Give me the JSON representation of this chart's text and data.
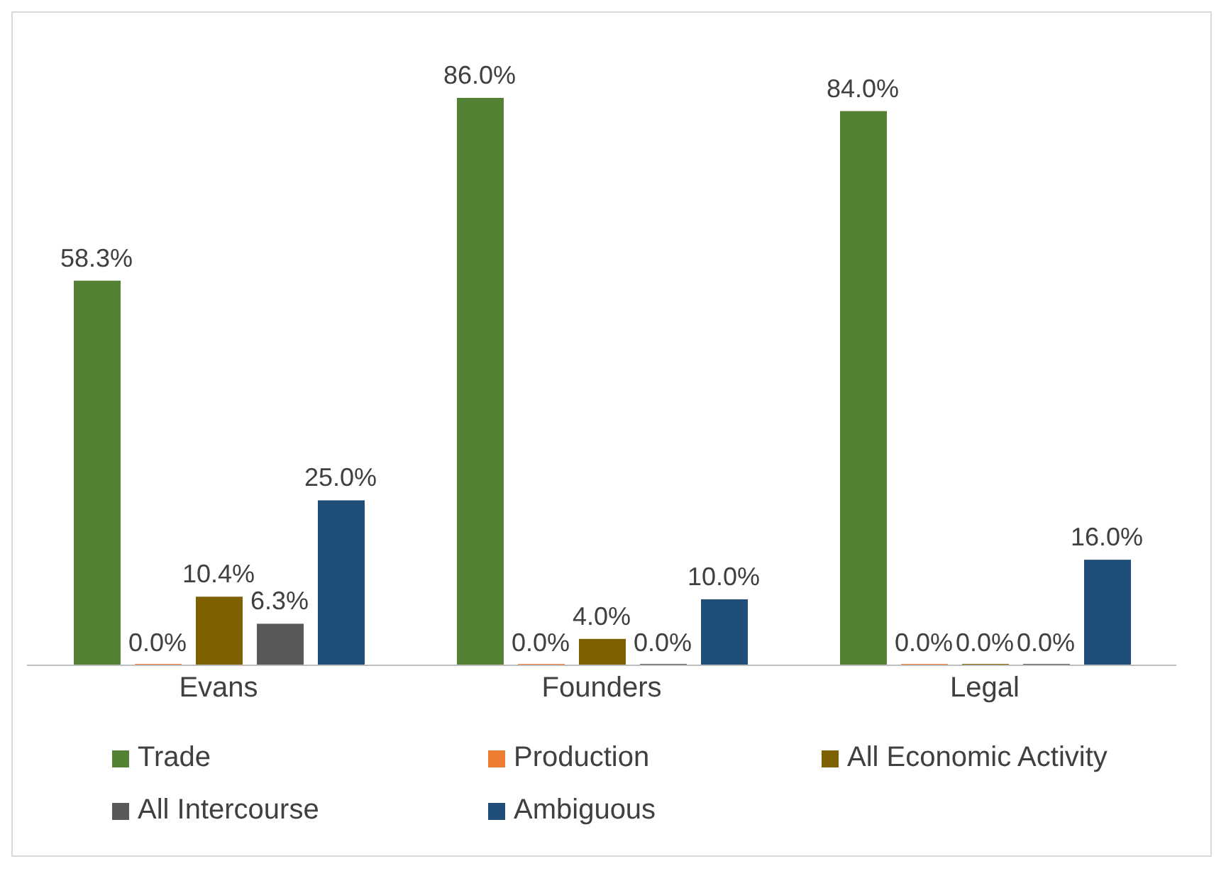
{
  "chart_data": {
    "type": "bar",
    "categories": [
      "Evans",
      "Founders",
      "Legal"
    ],
    "series": [
      {
        "name": "Trade",
        "color": "#548235",
        "values": [
          58.3,
          86.0,
          84.0
        ],
        "value_labels": [
          "58.3%",
          "86.0%",
          "84.0%"
        ]
      },
      {
        "name": "Production",
        "color": "#ed7d31",
        "values": [
          0,
          0,
          0
        ],
        "value_labels": [
          "0.0%",
          "0.0%",
          "0.0%"
        ]
      },
      {
        "name": "All Economic Activity",
        "color": "#7f6000",
        "values": [
          10.4,
          4.0,
          0
        ],
        "value_labels": [
          "10.4%",
          "4.0%",
          "0.0%"
        ]
      },
      {
        "name": "All Intercourse",
        "color": "#595959",
        "values": [
          6.3,
          0,
          0
        ],
        "value_labels": [
          "6.3%",
          "0.0%",
          "0.0%"
        ]
      },
      {
        "name": "Ambiguous",
        "color": "#1f4e79",
        "values": [
          25.0,
          10.0,
          16.0
        ],
        "value_labels": [
          "25.0%",
          "10.0%",
          "16.0%"
        ]
      }
    ],
    "legend": "bottom",
    "grid": false
  }
}
